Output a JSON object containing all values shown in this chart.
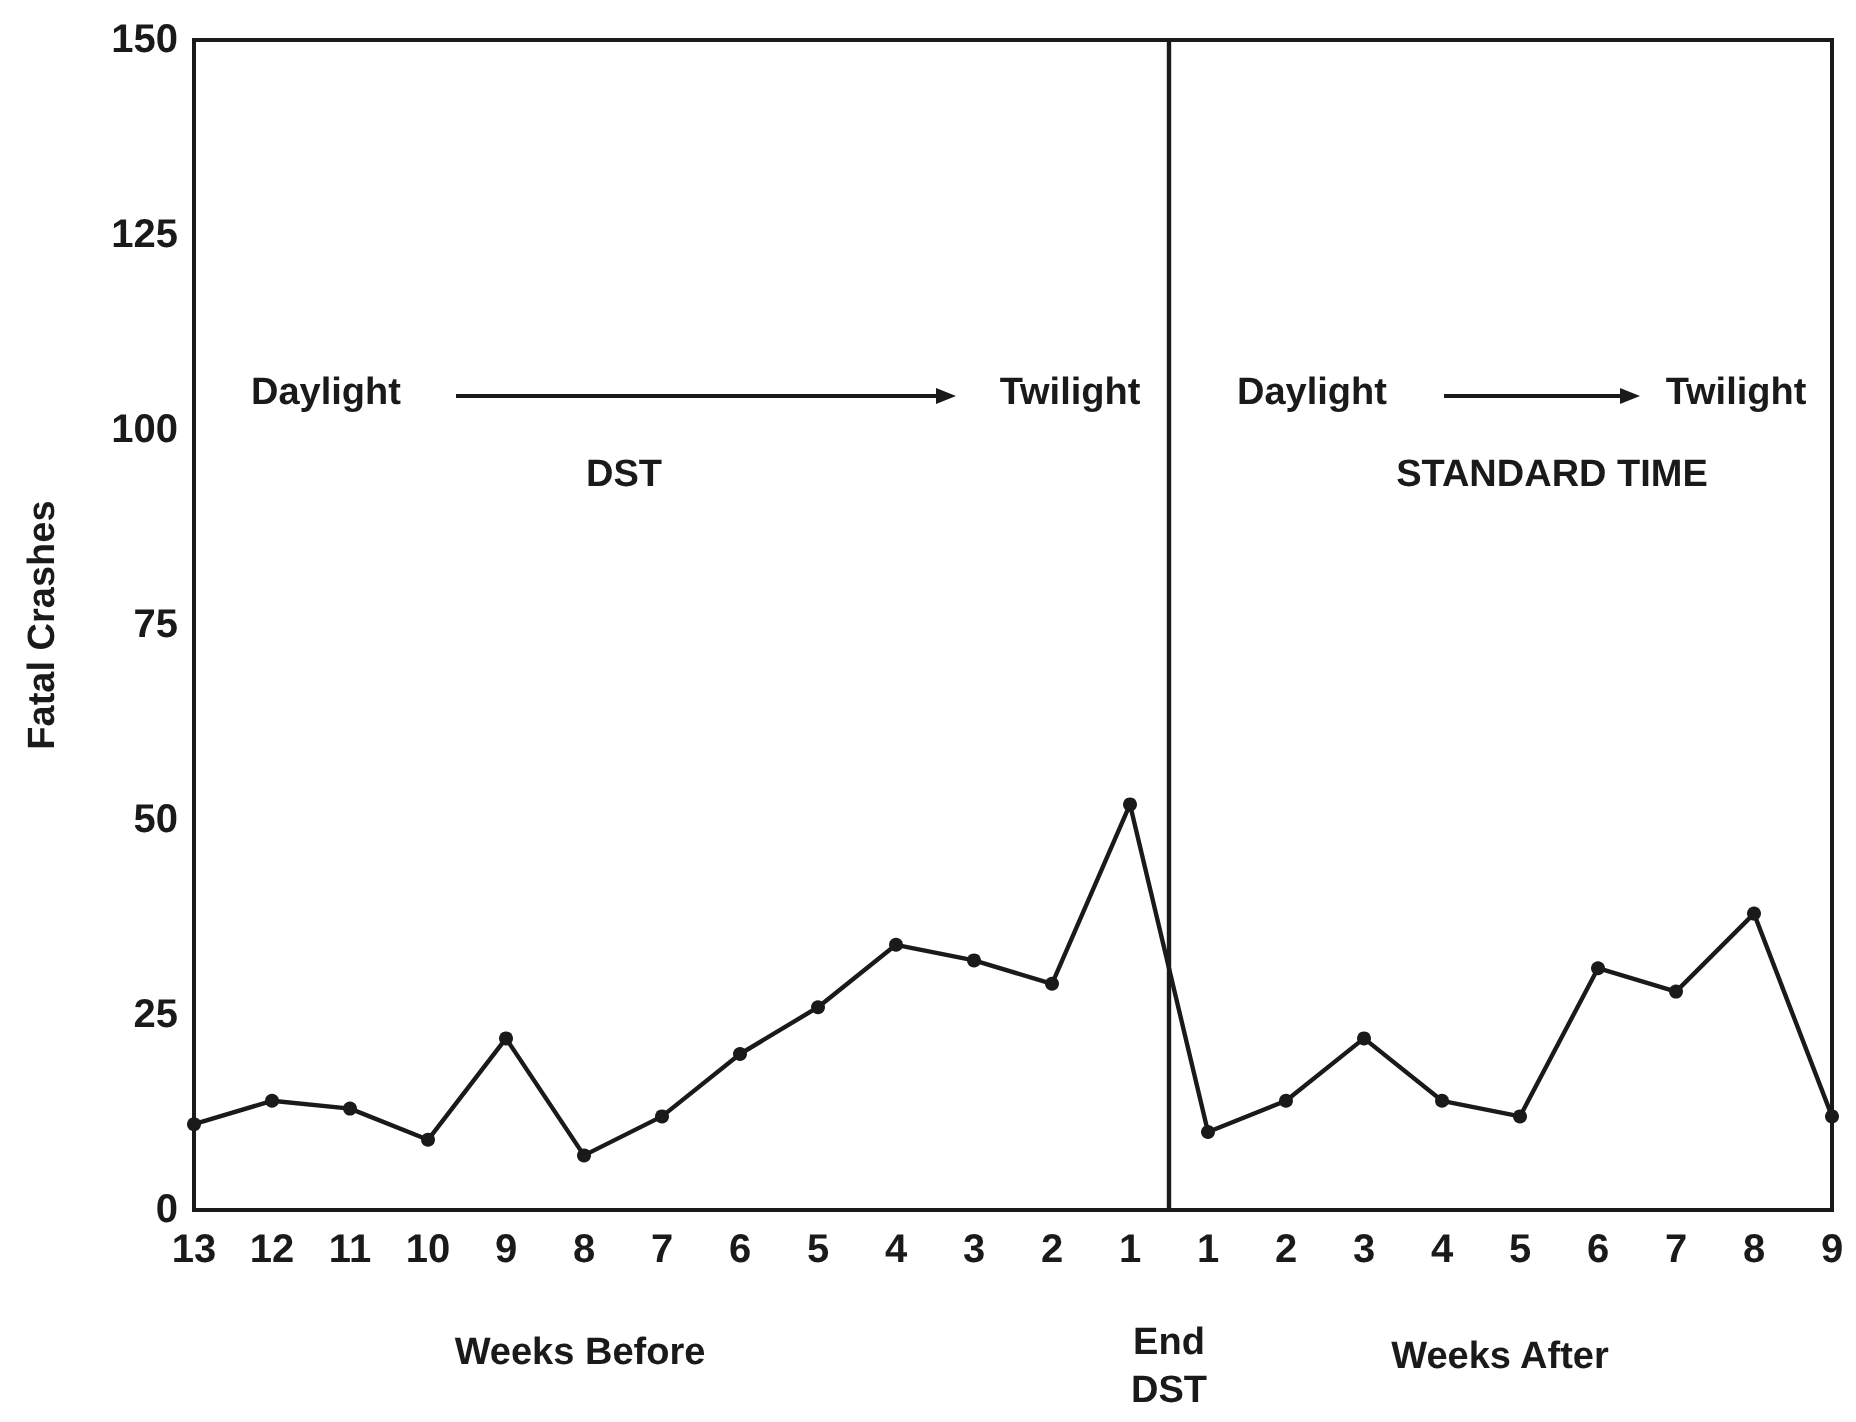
{
  "chart_data": {
    "type": "line",
    "categories": [
      "13",
      "12",
      "11",
      "10",
      "9",
      "8",
      "7",
      "6",
      "5",
      "4",
      "3",
      "2",
      "1",
      "1",
      "2",
      "3",
      "4",
      "5",
      "6",
      "7",
      "8",
      "9"
    ],
    "series": [
      {
        "color": "#1a1a1a",
        "values": [
          11,
          14,
          13,
          9,
          22,
          7,
          12,
          20,
          26,
          34,
          32,
          29,
          52,
          10,
          14,
          22,
          14,
          12,
          31,
          28,
          38,
          12
        ]
      }
    ],
    "ylabel": "Fatal Crashes",
    "ylim": [
      0,
      150
    ],
    "yticks": [
      0,
      25,
      50,
      75,
      100,
      125,
      150
    ],
    "annotations": [
      "Daylight",
      "Twilight",
      "DST",
      "Daylight",
      "Twilight",
      "STANDARD TIME",
      "Weeks Before",
      "Weeks After",
      "End DST"
    ],
    "marker": "circle",
    "line_style": "solid"
  }
}
